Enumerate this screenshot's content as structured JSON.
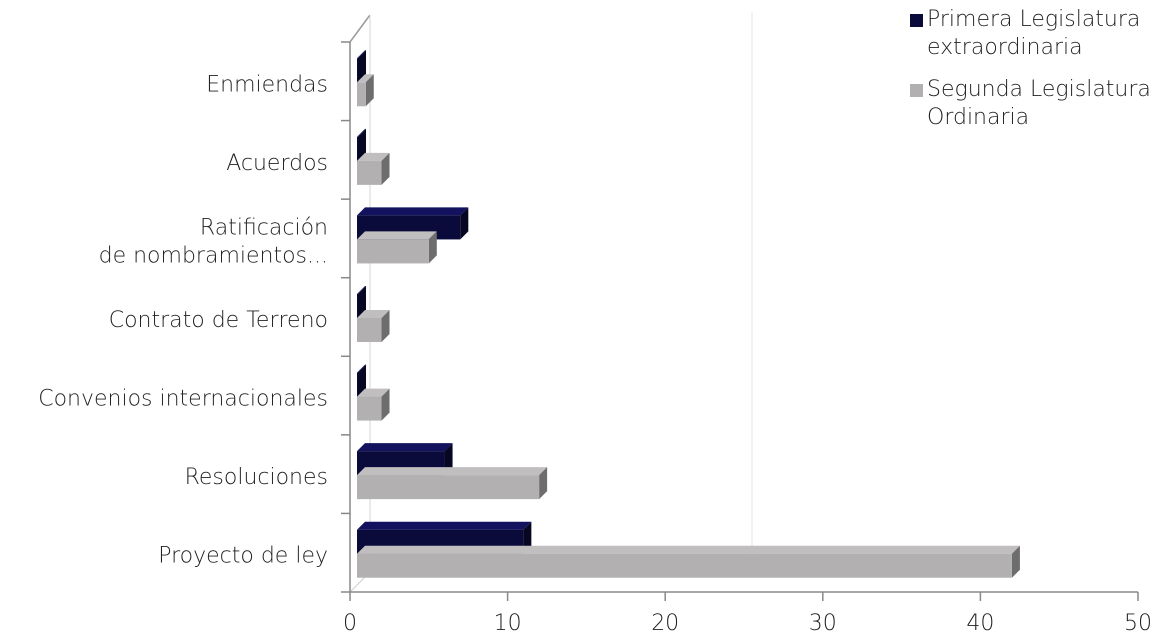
{
  "chart_data": {
    "type": "bar",
    "orientation": "horizontal",
    "style": "3d",
    "categories": [
      "Proyecto de ley",
      "Resoluciones",
      "Convenios internacionales",
      "Contrato de Terreno",
      "Ratificación de nombramientos...",
      "Acuerdos",
      "Enmiendas"
    ],
    "series": [
      {
        "name": "Primera Legislatura extraordinaria",
        "color": "#0b0b3b",
        "values": [
          11,
          6,
          0,
          0,
          7,
          0,
          0
        ]
      },
      {
        "name": "Segunda Legislatura Ordinaria",
        "color": "#b2b0b1",
        "values": [
          42,
          12,
          2,
          2,
          5,
          2,
          1
        ]
      }
    ],
    "xlim": [
      0,
      50
    ],
    "xticks": [
      "0",
      "10",
      "20",
      "30",
      "40",
      "50"
    ],
    "grid": "vertical at 25",
    "legend_position": "top-right"
  }
}
